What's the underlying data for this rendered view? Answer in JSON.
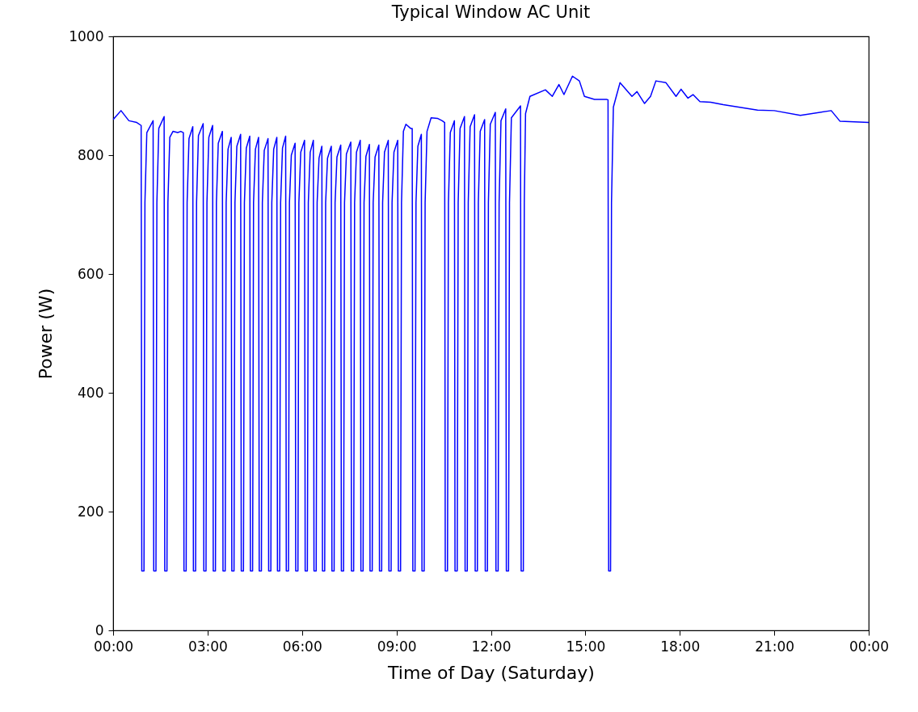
{
  "chart_data": {
    "type": "line",
    "title": "Typical Window AC Unit",
    "xlabel": "Time of Day (Saturday)",
    "ylabel": "Power (W)",
    "x": [
      0,
      0.25,
      0.5,
      0.75,
      0.89,
      0.91,
      0.98,
      1.01,
      1.07,
      1.27,
      1.29,
      1.36,
      1.39,
      1.45,
      1.62,
      1.64,
      1.71,
      1.74,
      1.8,
      1.9,
      2.05,
      2.15,
      2.23,
      2.25,
      2.32,
      2.35,
      2.41,
      2.53,
      2.55,
      2.62,
      2.65,
      2.71,
      2.86,
      2.88,
      2.95,
      2.98,
      3.04,
      3.16,
      3.18,
      3.25,
      3.28,
      3.34,
      3.47,
      3.49,
      3.56,
      3.59,
      3.65,
      3.75,
      3.77,
      3.84,
      3.87,
      3.93,
      4.05,
      4.07,
      4.14,
      4.17,
      4.23,
      4.34,
      4.36,
      4.43,
      4.46,
      4.52,
      4.62,
      4.64,
      4.71,
      4.74,
      4.8,
      4.92,
      4.94,
      5.01,
      5.04,
      5.1,
      5.2,
      5.22,
      5.29,
      5.32,
      5.38,
      5.48,
      5.5,
      5.57,
      5.6,
      5.66,
      5.78,
      5.8,
      5.87,
      5.9,
      5.96,
      6.08,
      6.1,
      6.17,
      6.2,
      6.26,
      6.36,
      6.38,
      6.45,
      6.48,
      6.54,
      6.63,
      6.65,
      6.72,
      6.75,
      6.81,
      6.93,
      6.95,
      7.02,
      7.05,
      7.11,
      7.23,
      7.25,
      7.32,
      7.35,
      7.41,
      7.55,
      7.57,
      7.64,
      7.67,
      7.73,
      7.85,
      7.87,
      7.94,
      7.97,
      8.03,
      8.14,
      8.16,
      8.23,
      8.26,
      8.32,
      8.44,
      8.46,
      8.53,
      8.56,
      8.62,
      8.74,
      8.76,
      8.83,
      8.86,
      8.92,
      9.04,
      9.06,
      9.13,
      9.16,
      9.22,
      9.3,
      9.45,
      9.5,
      9.52,
      9.59,
      9.62,
      9.68,
      9.79,
      9.81,
      9.88,
      9.91,
      9.97,
      10.1,
      10.3,
      10.45,
      10.53,
      10.55,
      10.62,
      10.65,
      10.71,
      10.84,
      10.86,
      10.93,
      10.96,
      11.02,
      11.16,
      11.18,
      11.25,
      11.28,
      11.34,
      11.48,
      11.5,
      11.57,
      11.6,
      11.66,
      11.8,
      11.82,
      11.89,
      11.92,
      11.98,
      12.14,
      12.16,
      12.23,
      12.26,
      12.32,
      12.47,
      12.49,
      12.56,
      12.59,
      12.65,
      12.94,
      12.96,
      13.03,
      13.06,
      13.1,
      13.24,
      13.73,
      13.95,
      14.16,
      14.32,
      14.59,
      14.81,
      14.97,
      15.29,
      15.67,
      15.72,
      15.74,
      15.8,
      15.83,
      15.89,
      16.1,
      16.48,
      16.64,
      16.88,
      17.07,
      17.24,
      17.56,
      17.88,
      18.04,
      18.26,
      18.42,
      18.64,
      18.98,
      19.38,
      20.47,
      21.0,
      21.83,
      22.81,
      23.09,
      24
    ],
    "series": [
      {
        "color": "#0000ff",
        "values": [
          860,
          875,
          858,
          855,
          850,
          100,
          100,
          720,
          838,
          858,
          100,
          100,
          720,
          845,
          865,
          100,
          100,
          720,
          830,
          840,
          838,
          840,
          838,
          100,
          100,
          720,
          828,
          848,
          100,
          100,
          720,
          833,
          853,
          100,
          100,
          720,
          830,
          850,
          100,
          100,
          720,
          820,
          840,
          100,
          100,
          720,
          810,
          830,
          100,
          100,
          720,
          815,
          835,
          100,
          100,
          720,
          812,
          832,
          100,
          100,
          720,
          810,
          830,
          100,
          100,
          720,
          808,
          828,
          100,
          100,
          720,
          810,
          830,
          100,
          100,
          720,
          812,
          832,
          100,
          100,
          720,
          800,
          820,
          100,
          100,
          720,
          805,
          825,
          100,
          100,
          720,
          805,
          825,
          100,
          100,
          720,
          795,
          815,
          100,
          100,
          720,
          795,
          815,
          100,
          100,
          720,
          797,
          817,
          100,
          100,
          720,
          802,
          822,
          100,
          100,
          720,
          805,
          825,
          100,
          100,
          720,
          798,
          818,
          100,
          100,
          720,
          797,
          817,
          100,
          100,
          720,
          805,
          825,
          100,
          100,
          720,
          805,
          825,
          100,
          100,
          720,
          840,
          852,
          845,
          845,
          100,
          100,
          720,
          815,
          835,
          100,
          100,
          720,
          840,
          863,
          862,
          858,
          855,
          100,
          100,
          720,
          838,
          858,
          100,
          100,
          720,
          845,
          865,
          100,
          100,
          720,
          848,
          868,
          100,
          100,
          720,
          840,
          860,
          100,
          100,
          720,
          852,
          872,
          100,
          100,
          720,
          858,
          878,
          100,
          100,
          720,
          863,
          883,
          100,
          100,
          720,
          870,
          899,
          910,
          899,
          919,
          902,
          933,
          925,
          899,
          894,
          894,
          893,
          100,
          100,
          720,
          881,
          922,
          899,
          907,
          887,
          899,
          925,
          922,
          899,
          911,
          896,
          902,
          890,
          889,
          885,
          876,
          875,
          867,
          875,
          857,
          855
        ]
      }
    ],
    "xlim": [
      0,
      24
    ],
    "xticks": [
      {
        "value": 0,
        "label": "00:00"
      },
      {
        "value": 3,
        "label": "03:00"
      },
      {
        "value": 6,
        "label": "06:00"
      },
      {
        "value": 9,
        "label": "09:00"
      },
      {
        "value": 12,
        "label": "12:00"
      },
      {
        "value": 15,
        "label": "15:00"
      },
      {
        "value": 18,
        "label": "18:00"
      },
      {
        "value": 21,
        "label": "21:00"
      },
      {
        "value": 24,
        "label": "00:00"
      }
    ],
    "ylim": [
      0,
      1000
    ],
    "yticks": [
      0,
      200,
      400,
      600,
      800,
      1000
    ]
  }
}
